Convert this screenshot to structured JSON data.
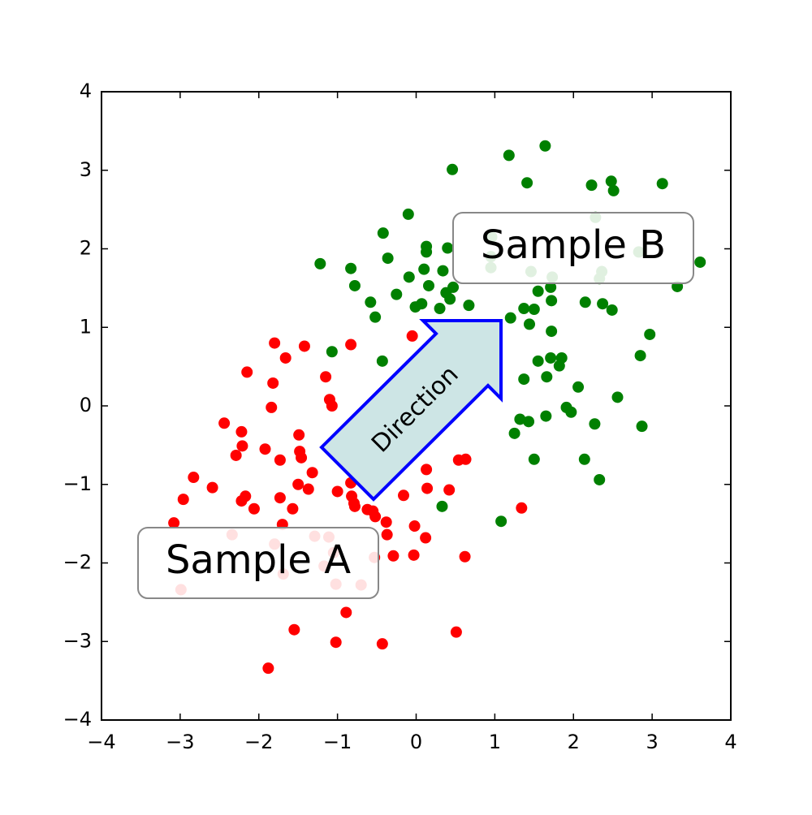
{
  "chart_data": {
    "type": "scatter",
    "xlim": [
      -4,
      4
    ],
    "ylim": [
      -4,
      4
    ],
    "xticks": [
      {
        "value": -4,
        "label": "−4"
      },
      {
        "value": -3,
        "label": "−3"
      },
      {
        "value": -2,
        "label": "−2"
      },
      {
        "value": -1,
        "label": "−1"
      },
      0,
      1,
      2,
      3,
      4
    ],
    "yticks": [
      {
        "value": -4,
        "label": "−4"
      },
      {
        "value": -3,
        "label": "−3"
      },
      {
        "value": -2,
        "label": "−2"
      },
      {
        "value": -1,
        "label": "−1"
      },
      0,
      1,
      2,
      3,
      4
    ],
    "grid": false,
    "annotations": [
      "Sample A",
      "Sample B",
      "Direction"
    ],
    "series": [
      {
        "color": "#ff0000",
        "x": [
          -0.05,
          -1.8,
          -0.83,
          -1.42,
          -1.66,
          -2.15,
          -1.15,
          -1.82,
          -1.1,
          -1.07,
          -1.84,
          -2.44,
          -2.22,
          -1.49,
          -2.21,
          -1.92,
          -1.48,
          -2.29,
          -1.46,
          -1.73,
          0.54,
          0.63,
          0.13,
          -1.32,
          -2.83,
          -0.83,
          -1.5,
          -2.59,
          -1.37,
          0.14,
          0.42,
          -1.0,
          -0.82,
          -2.17,
          -2.96,
          -1.73,
          -0.16,
          -2.22,
          -0.79,
          -0.78,
          -1.57,
          -2.06,
          -0.62,
          -0.55,
          1.34,
          -0.52,
          -0.38,
          -3.08,
          -1.7,
          -0.02,
          -0.37,
          0.12,
          -0.29,
          -0.03,
          0.62,
          -0.89,
          -1.55,
          0.51,
          -1.02,
          -0.43,
          -1.88,
          -2.34,
          -2.99,
          -1.8,
          -1.29,
          -1.11,
          -1.05,
          -1.69,
          -1.02,
          -0.7,
          -0.53,
          -1.17
        ],
        "y": [
          0.89,
          0.8,
          0.78,
          0.76,
          0.61,
          0.43,
          0.37,
          0.29,
          0.08,
          0.0,
          -0.02,
          -0.22,
          -0.33,
          -0.37,
          -0.51,
          -0.55,
          -0.58,
          -0.63,
          -0.66,
          -0.69,
          -0.69,
          -0.68,
          -0.81,
          -0.85,
          -0.91,
          -0.98,
          -1.0,
          -1.04,
          -1.06,
          -1.05,
          -1.07,
          -1.09,
          -1.15,
          -1.15,
          -1.19,
          -1.17,
          -1.14,
          -1.21,
          -1.24,
          -1.28,
          -1.31,
          -1.31,
          -1.32,
          -1.34,
          -1.3,
          -1.41,
          -1.48,
          -1.49,
          -1.51,
          -1.53,
          -1.64,
          -1.68,
          -1.91,
          -1.9,
          -1.92,
          -2.63,
          -2.85,
          -2.88,
          -3.01,
          -3.03,
          -3.34,
          -1.64,
          -2.34,
          -1.76,
          -1.66,
          -1.67,
          -1.87,
          -2.14,
          -2.27,
          -2.28,
          -1.93,
          -2.04
        ]
      },
      {
        "color": "#008000",
        "x": [
          1.64,
          1.18,
          0.46,
          1.41,
          2.48,
          2.23,
          3.13,
          2.51,
          -0.1,
          2.28,
          -0.42,
          0.13,
          0.13,
          0.4,
          -0.36,
          -1.22,
          3.61,
          -0.83,
          0.1,
          -0.09,
          0.34,
          -0.78,
          0.16,
          3.32,
          1.71,
          0.47,
          0.38,
          -0.25,
          1.55,
          -0.58,
          0.07,
          0.43,
          1.72,
          2.15,
          2.37,
          -0.01,
          0.67,
          0.3,
          1.37,
          1.5,
          2.49,
          -0.52,
          1.2,
          1.44,
          1.72,
          2.97,
          -1.07,
          2.85,
          -0.43,
          1.55,
          1.71,
          1.85,
          1.82,
          1.66,
          1.37,
          2.06,
          2.56,
          1.91,
          1.97,
          1.32,
          1.43,
          1.65,
          2.27,
          2.87,
          1.25,
          1.5,
          2.14,
          2.33,
          0.33,
          1.08,
          0.95,
          1.46,
          1.73,
          2.36,
          2.33,
          2.83,
          0.96,
          0.95
        ],
        "y": [
          3.31,
          3.19,
          3.01,
          2.84,
          2.86,
          2.81,
          2.83,
          2.74,
          2.44,
          2.4,
          2.2,
          2.03,
          1.96,
          2.01,
          1.88,
          1.81,
          1.83,
          1.75,
          1.74,
          1.64,
          1.72,
          1.53,
          1.53,
          1.52,
          1.51,
          1.51,
          1.44,
          1.42,
          1.46,
          1.32,
          1.3,
          1.36,
          1.34,
          1.32,
          1.3,
          1.26,
          1.28,
          1.24,
          1.24,
          1.23,
          1.22,
          1.13,
          1.12,
          1.04,
          0.95,
          0.91,
          0.69,
          0.64,
          0.57,
          0.57,
          0.61,
          0.61,
          0.51,
          0.37,
          0.34,
          0.24,
          0.11,
          -0.02,
          -0.08,
          -0.17,
          -0.2,
          -0.13,
          -0.23,
          -0.26,
          -0.35,
          -0.68,
          -0.68,
          -0.94,
          -1.28,
          -1.47,
          1.76,
          1.71,
          1.64,
          1.71,
          1.62,
          1.96,
          2.15,
          1.9
        ]
      }
    ]
  }
}
